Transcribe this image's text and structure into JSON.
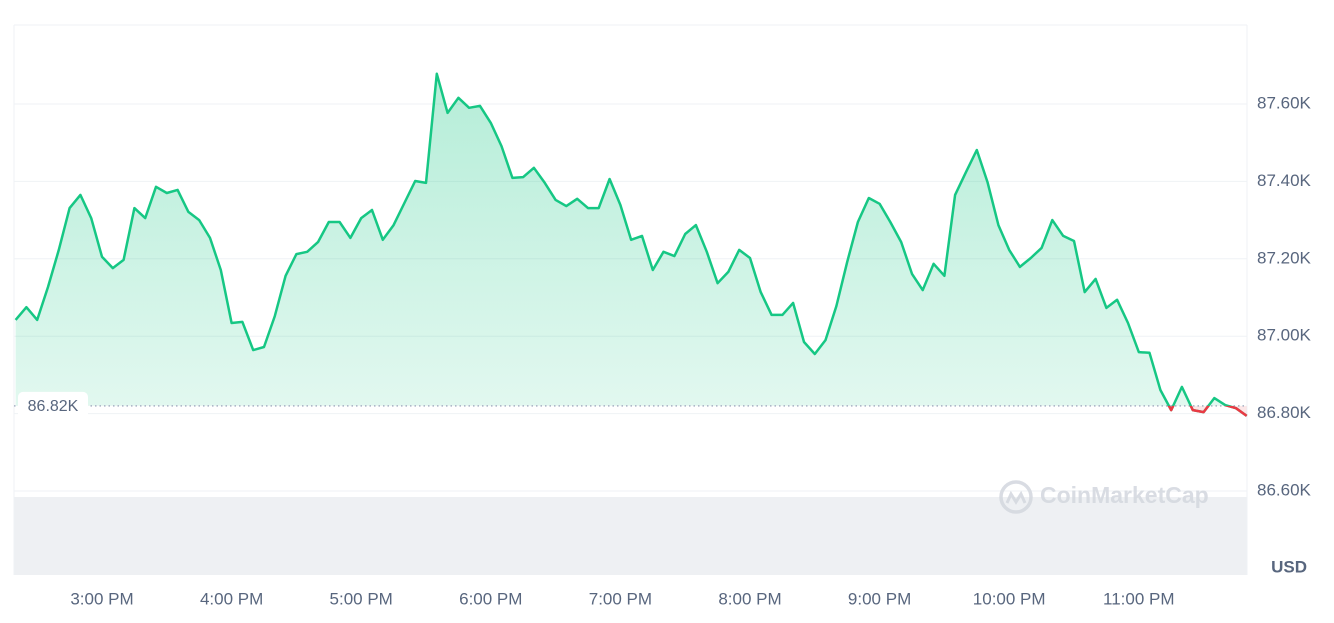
{
  "chart_data": {
    "type": "line",
    "x": [
      14.333,
      14.417,
      14.5,
      14.583,
      14.667,
      14.75,
      14.833,
      14.917,
      15,
      15.083,
      15.167,
      15.25,
      15.333,
      15.417,
      15.5,
      15.583,
      15.667,
      15.75,
      15.833,
      15.917,
      16,
      16.083,
      16.167,
      16.25,
      16.333,
      16.417,
      16.5,
      16.583,
      16.667,
      16.75,
      16.833,
      16.917,
      17,
      17.083,
      17.167,
      17.25,
      17.333,
      17.417,
      17.5,
      17.583,
      17.667,
      17.75,
      17.833,
      17.917,
      18,
      18.083,
      18.167,
      18.25,
      18.333,
      18.417,
      18.5,
      18.583,
      18.667,
      18.75,
      18.833,
      18.917,
      19,
      19.083,
      19.167,
      19.25,
      19.333,
      19.417,
      19.5,
      19.583,
      19.667,
      19.75,
      19.833,
      19.917,
      20,
      20.083,
      20.167,
      20.25,
      20.333,
      20.417,
      20.5,
      20.583,
      20.667,
      20.75,
      20.833,
      20.917,
      21,
      21.083,
      21.167,
      21.25,
      21.333,
      21.417,
      21.5,
      21.583,
      21.667,
      21.75,
      21.833,
      21.917,
      22,
      22.083,
      22.167,
      22.25,
      22.333,
      22.417,
      22.5,
      22.583,
      22.667,
      22.75,
      22.833,
      22.917,
      23,
      23.083,
      23.167,
      23.25,
      23.333,
      23.417,
      23.5,
      23.583,
      23.667,
      23.75,
      23.833
    ],
    "values": [
      87.042,
      87.075,
      87.042,
      87.127,
      87.223,
      87.331,
      87.365,
      87.305,
      87.205,
      87.176,
      87.197,
      87.331,
      87.305,
      87.386,
      87.37,
      87.378,
      87.321,
      87.3,
      87.254,
      87.171,
      87.034,
      87.037,
      86.964,
      86.972,
      87.052,
      87.156,
      87.212,
      87.218,
      87.243,
      87.295,
      87.295,
      87.254,
      87.305,
      87.326,
      87.249,
      87.287,
      87.344,
      87.401,
      87.396,
      87.678,
      87.577,
      87.616,
      87.59,
      87.595,
      87.551,
      87.491,
      87.409,
      87.411,
      87.435,
      87.396,
      87.352,
      87.336,
      87.355,
      87.331,
      87.331,
      87.406,
      87.339,
      87.249,
      87.259,
      87.171,
      87.218,
      87.207,
      87.264,
      87.287,
      87.218,
      87.137,
      87.166,
      87.223,
      87.202,
      87.114,
      87.055,
      87.055,
      87.086,
      86.985,
      86.954,
      86.99,
      87.078,
      87.192,
      87.295,
      87.357,
      87.342,
      87.295,
      87.243,
      87.161,
      87.119,
      87.187,
      87.156,
      87.365,
      87.424,
      87.481,
      87.398,
      87.287,
      87.223,
      87.179,
      87.202,
      87.228,
      87.3,
      87.259,
      87.246,
      87.114,
      87.148,
      87.073,
      87.094,
      87.034,
      86.959,
      86.957,
      86.861,
      86.809,
      86.869,
      86.809,
      86.804,
      86.84,
      86.822,
      86.814,
      86.794
    ],
    "color": "#16c784",
    "down_color": "#ea3943",
    "xlim": [
      14.321,
      23.835
    ],
    "xticks": [
      {
        "value": 15,
        "label": "3:00 PM"
      },
      {
        "value": 16,
        "label": "4:00 PM"
      },
      {
        "value": 17,
        "label": "5:00 PM"
      },
      {
        "value": 18,
        "label": "6:00 PM"
      },
      {
        "value": 19,
        "label": "7:00 PM"
      },
      {
        "value": 20,
        "label": "8:00 PM"
      },
      {
        "value": 21,
        "label": "9:00 PM"
      },
      {
        "value": 22,
        "label": "10:00 PM"
      },
      {
        "value": 23,
        "label": "11:00 PM"
      }
    ],
    "ylim": [
      86.383,
      87.804
    ],
    "yticks": [
      {
        "value": 86.6,
        "label": "86.60K"
      },
      {
        "value": 86.8,
        "label": "86.80K"
      },
      {
        "value": 87.0,
        "label": "87.00K"
      },
      {
        "value": 87.2,
        "label": "87.20K"
      },
      {
        "value": 87.4,
        "label": "87.40K"
      },
      {
        "value": 87.6,
        "label": "87.60K"
      }
    ],
    "reference": {
      "value": 86.82,
      "label": "86.82K"
    },
    "unit_label": "USD",
    "watermark": "CoinMarketCap",
    "grid": true
  }
}
